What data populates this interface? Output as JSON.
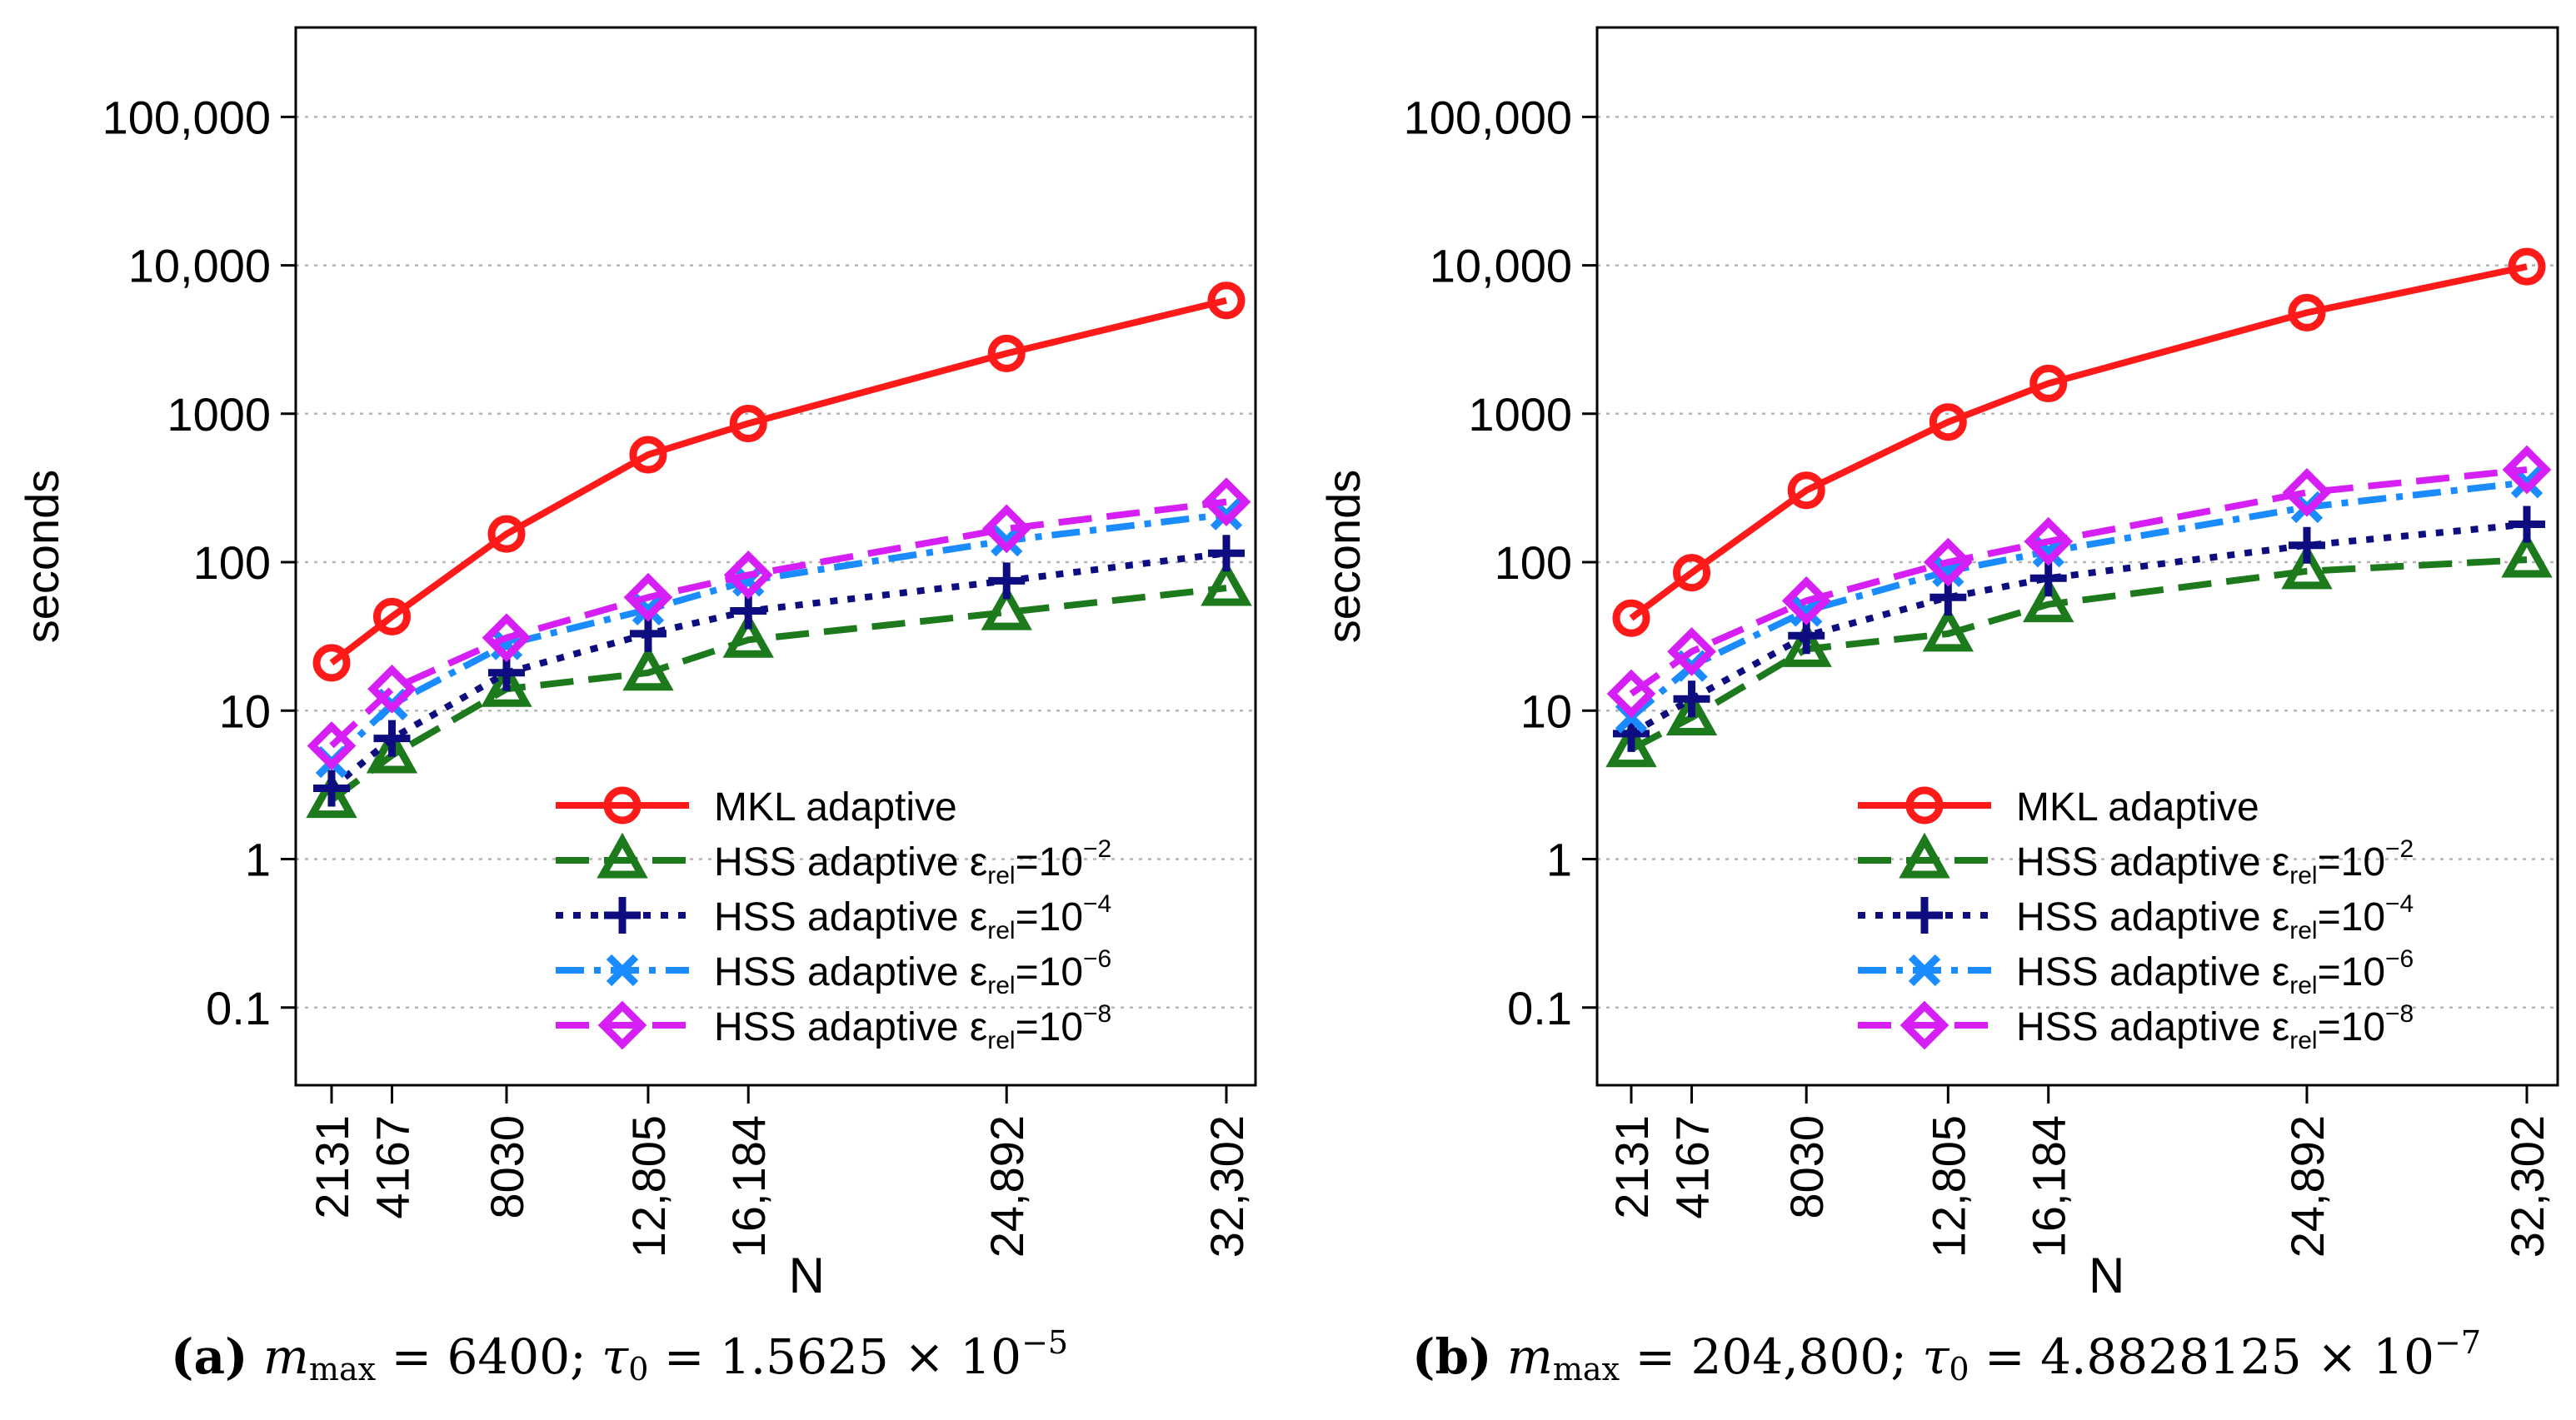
{
  "chart_data": [
    {
      "type": "line",
      "yscale": "log",
      "ylabel": "seconds",
      "xlabel": "N",
      "ylim": [
        0.03,
        400000
      ],
      "y_ticks": [
        0.1,
        1,
        10,
        100,
        1000,
        10000,
        100000
      ],
      "y_tick_labels": [
        "0.1",
        "1",
        "10",
        "100",
        "1000",
        "10,000",
        "100,000"
      ],
      "x": [
        2131,
        4167,
        8030,
        12805,
        16184,
        24892,
        32302
      ],
      "x_tick_labels": [
        "2131",
        "4167",
        "8030",
        "12,805",
        "16,184",
        "24,892",
        "32,302"
      ],
      "grid": "horizontal dotted",
      "legend_position": "bottom-right",
      "series": [
        {
          "name": "MKL adaptive",
          "label_base": "MKL adaptive",
          "label_exp": "",
          "color": "#ff1a1a",
          "marker": "circle",
          "dash": "solid",
          "values": [
            21,
            43,
            155,
            530,
            860,
            2550,
            5800
          ]
        },
        {
          "name": "HSS adaptive ε_rel=10^-2",
          "label_base": "HSS adaptive ε",
          "label_exp": "−2",
          "color": "#1c7a1c",
          "marker": "triangle",
          "dash": "long-dash",
          "values": [
            2.5,
            5,
            14,
            18,
            30,
            46,
            67
          ]
        },
        {
          "name": "HSS adaptive ε_rel=10^-4",
          "label_base": "HSS adaptive ε",
          "label_exp": "−4",
          "color": "#0d0d80",
          "marker": "plus",
          "dash": "dotted",
          "values": [
            3,
            6.5,
            18,
            33,
            47,
            75,
            115
          ]
        },
        {
          "name": "HSS adaptive ε_rel=10^-6",
          "label_base": "HSS adaptive ε",
          "label_exp": "−6",
          "color": "#1a8cff",
          "marker": "x",
          "dash": "dash-dot",
          "values": [
            4.5,
            11,
            28,
            48,
            75,
            140,
            210
          ]
        },
        {
          "name": "HSS adaptive ε_rel=10^-8",
          "label_base": "HSS adaptive ε",
          "label_exp": "−8",
          "color": "#d61ff5",
          "marker": "diamond",
          "dash": "long-dash",
          "values": [
            5.8,
            14,
            31,
            58,
            82,
            168,
            255
          ]
        }
      ]
    },
    {
      "type": "line",
      "yscale": "log",
      "ylabel": "seconds",
      "xlabel": "N",
      "ylim": [
        0.03,
        400000
      ],
      "y_ticks": [
        0.1,
        1,
        10,
        100,
        1000,
        10000,
        100000
      ],
      "y_tick_labels": [
        "0.1",
        "1",
        "10",
        "100",
        "1000",
        "10,000",
        "100,000"
      ],
      "x": [
        2131,
        4167,
        8030,
        12805,
        16184,
        24892,
        32302
      ],
      "x_tick_labels": [
        "2131",
        "4167",
        "8030",
        "12,805",
        "16,184",
        "24,892",
        "32,302"
      ],
      "grid": "horizontal dotted",
      "legend_position": "bottom-right",
      "series": [
        {
          "name": "MKL adaptive",
          "label_base": "MKL adaptive",
          "label_exp": "",
          "color": "#ff1a1a",
          "marker": "circle",
          "dash": "solid",
          "values": [
            42,
            85,
            305,
            880,
            1600,
            4800,
            9800
          ]
        },
        {
          "name": "HSS adaptive ε_rel=10^-2",
          "label_base": "HSS adaptive ε",
          "label_exp": "−2",
          "color": "#1c7a1c",
          "marker": "triangle",
          "dash": "long-dash",
          "values": [
            5.5,
            9,
            26,
            33,
            52,
            87,
            104
          ]
        },
        {
          "name": "HSS adaptive ε_rel=10^-4",
          "label_base": "HSS adaptive ε",
          "label_exp": "−4",
          "color": "#0d0d80",
          "marker": "plus",
          "dash": "dotted",
          "values": [
            7,
            12,
            32,
            58,
            78,
            130,
            180
          ]
        },
        {
          "name": "HSS adaptive ε_rel=10^-6",
          "label_base": "HSS adaptive ε",
          "label_exp": "−6",
          "color": "#1a8cff",
          "marker": "x",
          "dash": "dash-dot",
          "values": [
            9,
            20,
            47,
            87,
            118,
            235,
            345
          ]
        },
        {
          "name": "HSS adaptive ε_rel=10^-8",
          "label_base": "HSS adaptive ε",
          "label_exp": "−8",
          "color": "#d61ff5",
          "marker": "diamond",
          "dash": "long-dash",
          "values": [
            13,
            25,
            55,
            100,
            138,
            295,
            420
          ]
        }
      ]
    }
  ],
  "legend_subscript": "rel",
  "legend_eq": "=10",
  "captions": [
    {
      "label": "(a)",
      "m_symbol": "m",
      "m_sub": "max",
      "m_value": "= 6400;",
      "tau_symbol": "τ",
      "tau_sub": "0",
      "tau_value": "= 1.5625 × 10",
      "tau_exp": "−5"
    },
    {
      "label": "(b)",
      "m_symbol": "m",
      "m_sub": "max",
      "m_value": "= 204,800;",
      "tau_symbol": "τ",
      "tau_sub": "0",
      "tau_value": "= 4.8828125 × 10",
      "tau_exp": "−7"
    }
  ]
}
